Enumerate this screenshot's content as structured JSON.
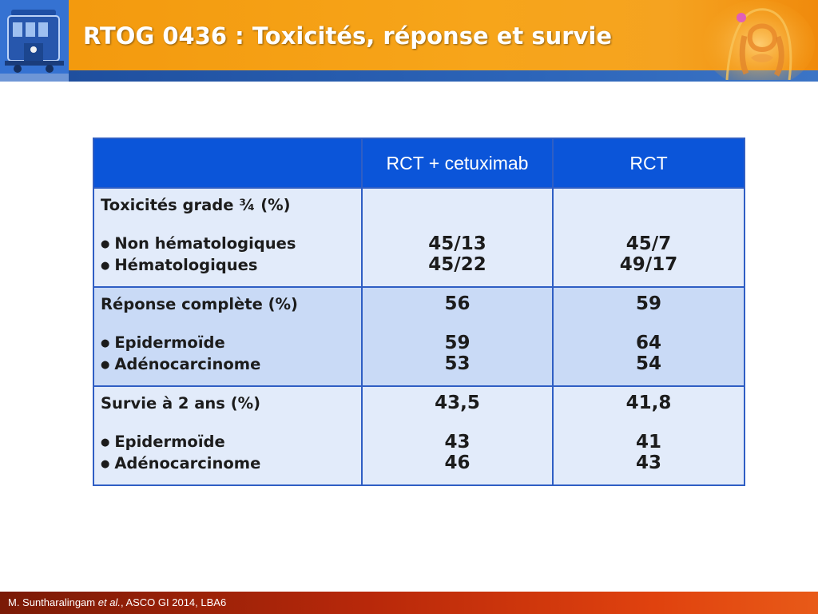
{
  "slide": {
    "title": "RTOG 0436 : Toxicités, réponse et survie"
  },
  "table": {
    "headers": [
      "",
      "RCT + cetuximab",
      "RCT"
    ],
    "groups": [
      {
        "header": {
          "label": "Toxicités grade ¾ (%)",
          "col1": "",
          "col2": ""
        },
        "rows": [
          {
            "label": "Non hématologiques",
            "col1": "45/13",
            "col2": "45/7"
          },
          {
            "label": "Hématologiques",
            "col1": "45/22",
            "col2": "49/17"
          }
        ]
      },
      {
        "header": {
          "label": "Réponse complète (%)",
          "col1": "56",
          "col2": "59"
        },
        "rows": [
          {
            "label": "Epidermoïde",
            "col1": "59",
            "col2": "64"
          },
          {
            "label": "Adénocarcinome",
            "col1": "53",
            "col2": "54"
          }
        ]
      },
      {
        "header": {
          "label": "Survie à 2 ans (%)",
          "col1": "43,5",
          "col2": "41,8"
        },
        "rows": [
          {
            "label": "Epidermoïde",
            "col1": "43",
            "col2": "41"
          },
          {
            "label": "Adénocarcinome",
            "col1": "46",
            "col2": "43"
          }
        ]
      }
    ],
    "bullet": "●"
  },
  "footer": {
    "author": "M. Suntharalingam",
    "etal": "et al.",
    "citation": ", ASCO GI 2014, LBA6"
  },
  "colors": {
    "header_orange": "#f7a51a",
    "header_blue": "#2c64b8",
    "table_header_bg": "#0b55d9",
    "row_light": "#e2ebfa",
    "row_dark": "#c9daf6",
    "footer_red": "#c8300c"
  },
  "icons": {
    "logo": "cable-car-logo",
    "anatomy": "digestive-tract-illustration"
  }
}
